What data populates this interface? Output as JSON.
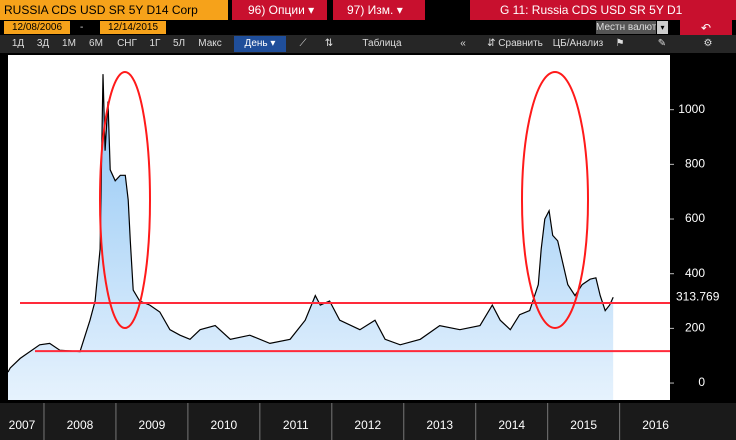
{
  "toolbar": {
    "security": "RUSSIA CDS USD SR 5Y D14 Corp",
    "options_button": "96) Опции",
    "edit_button": "97) Изм.",
    "window_title": "G 11: Russia CDS USD SR 5Y D1",
    "start_date": "12/08/2006",
    "date_separator": "-",
    "end_date": "12/14/2015",
    "currency": "Местн валюта",
    "periods": [
      "1Д",
      "3Д",
      "1М",
      "6М",
      "СНГ",
      "1Г",
      "5Л",
      "Макс"
    ],
    "frequency": "День",
    "table_button": "Таблица",
    "compare_button": "Сравнить",
    "analysis_button": "ЦБ/Анализ"
  },
  "chart_data": {
    "type": "area",
    "x": [
      2007.5,
      2007.53,
      2007.67,
      2007.94,
      2008.08,
      2008.22,
      2008.5,
      2008.64,
      2008.71,
      2008.78,
      2008.82,
      2008.85,
      2008.89,
      2008.92,
      2008.99,
      2009.06,
      2009.13,
      2009.17,
      2009.2,
      2009.24,
      2009.33,
      2009.47,
      2009.61,
      2009.75,
      2009.89,
      2010.03,
      2010.17,
      2010.38,
      2010.59,
      2010.86,
      2011.14,
      2011.42,
      2011.63,
      2011.77,
      2011.84,
      2011.97,
      2012.11,
      2012.39,
      2012.6,
      2012.74,
      2012.95,
      2013.23,
      2013.5,
      2013.78,
      2014.06,
      2014.23,
      2014.34,
      2014.48,
      2014.61,
      2014.75,
      2014.87,
      2014.91,
      2014.96,
      2015.02,
      2015.07,
      2015.14,
      2015.2,
      2015.28,
      2015.38,
      2015.48,
      2015.59,
      2015.67,
      2015.73,
      2015.8,
      2015.86,
      2015.91
    ],
    "series": [
      {
        "color": "#000000",
        "fill_top": "#8cc4f4",
        "fill_bottom": "#e6f2fd",
        "values": [
          40,
          55,
          90,
          140,
          145,
          120,
          115,
          230,
          300,
          490,
          1130,
          850,
          1030,
          780,
          740,
          760,
          760,
          670,
          520,
          340,
          300,
          285,
          260,
          195,
          175,
          160,
          195,
          210,
          160,
          175,
          145,
          160,
          230,
          320,
          285,
          300,
          230,
          195,
          230,
          160,
          140,
          160,
          210,
          195,
          210,
          285,
          230,
          195,
          250,
          265,
          360,
          490,
          600,
          630,
          540,
          520,
          450,
          360,
          320,
          360,
          380,
          385,
          320,
          265,
          285,
          313.769
        ]
      }
    ],
    "xlim": [
      2007.5,
      2016.7
    ],
    "xticks": [
      {
        "value": 2007,
        "label": "2007"
      },
      {
        "value": 2008,
        "label": "2008"
      },
      {
        "value": 2009,
        "label": "2009"
      },
      {
        "value": 2010,
        "label": "2010"
      },
      {
        "value": 2011,
        "label": "2011"
      },
      {
        "value": 2012,
        "label": "2012"
      },
      {
        "value": 2013,
        "label": "2013"
      },
      {
        "value": 2014,
        "label": "2014"
      },
      {
        "value": 2015,
        "label": "2015"
      },
      {
        "value": 2016,
        "label": "2016"
      }
    ],
    "ylim": [
      -62,
      1200
    ],
    "yticks": [
      0,
      200,
      400,
      600,
      800,
      1000
    ],
    "hlines": [
      293,
      117
    ],
    "hline_color": "#ff2a3a",
    "grid": false
  }
}
